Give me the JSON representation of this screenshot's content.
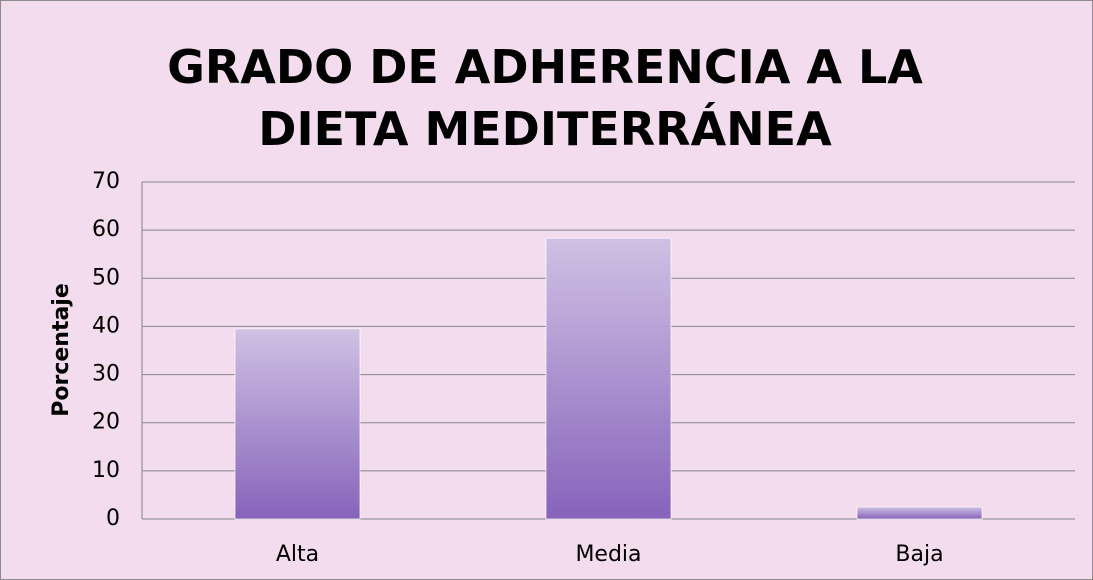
{
  "chart_data": {
    "type": "bar",
    "title": "GRADO DE ADHERENCIA A LA DIETA MEDITERRÁNEA",
    "y_label": "Porcentaje",
    "categories": [
      "Alta",
      "Media",
      "Baja"
    ],
    "values": [
      39.5,
      58.3,
      2.5
    ],
    "color": "#8763bb",
    "ylim": [
      0,
      70
    ],
    "yticks": [
      0,
      10,
      20,
      30,
      40,
      50,
      60,
      70
    ],
    "grid": true
  }
}
